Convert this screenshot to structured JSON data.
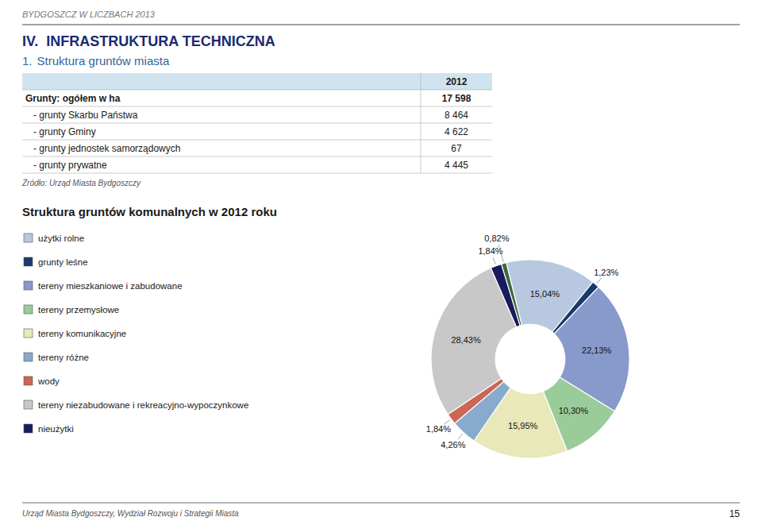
{
  "header_text": "BYDGOSZCZ W LICZBACH 2013",
  "section": {
    "number": "IV.",
    "title": "INFRASTRUKTURA TECHNICZNA"
  },
  "subsection": {
    "number": "1.",
    "title": "Struktura gruntów miasta"
  },
  "table": {
    "header": "2012",
    "rows": [
      {
        "label": "Grunty: ogółem w ha",
        "value": "17 598"
      },
      {
        "label": "   - grunty Skarbu Państwa",
        "value": "8 464"
      },
      {
        "label": "   - grunty Gminy",
        "value": "4 622"
      },
      {
        "label": "   - grunty jednostek samorządowych",
        "value": "67"
      },
      {
        "label": "   - grunty prywatne",
        "value": "4 445"
      }
    ]
  },
  "source_text": "Źródło: Urząd Miasta Bydgoszczy",
  "footer_text": "Urząd Miasta Bydgoszczy, Wydział Rozwoju i Strategii Miasta",
  "page_number": "15",
  "chart_data": {
    "type": "pie",
    "title": "Struktura gruntów komunalnych w 2012 roku",
    "categories": [
      "użytki rolne",
      "grunty leśne",
      "tereny mieszkaniowe i zabudowane",
      "tereny przemysłowe",
      "tereny komunikacyjne",
      "tereny różne",
      "wody",
      "tereny niezabudowane i rekreacyjno-wypoczynkowe",
      "nieużytki",
      null
    ],
    "values": [
      15.04,
      1.23,
      22.13,
      10.3,
      15.95,
      4.26,
      1.84,
      28.43,
      1.84,
      0.82
    ],
    "value_labels": [
      "15,04%",
      "1,23%",
      "22,13%",
      "10,30%",
      "15,95%",
      "4,26%",
      "1,84%",
      "28,43%",
      "1,84%",
      "0,82%"
    ],
    "colors": [
      "#b8c8e0",
      "#1a3a6e",
      "#8899cc",
      "#99cc99",
      "#e8e8b8",
      "#88aacc",
      "#cc6655",
      "#c8c8c8",
      "#1a1a5e",
      "#3a6a3e"
    ],
    "data_labels": true,
    "legend": "left"
  }
}
